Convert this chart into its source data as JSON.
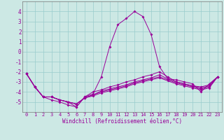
{
  "background_color": "#cce8e4",
  "grid_color": "#99cccc",
  "line_color": "#990099",
  "x_hours": [
    0,
    1,
    2,
    3,
    4,
    5,
    6,
    7,
    8,
    9,
    10,
    11,
    12,
    13,
    14,
    15,
    16,
    17,
    18,
    19,
    20,
    21,
    22,
    23
  ],
  "series1": [
    -2.2,
    -3.5,
    -4.5,
    -4.8,
    -5.0,
    -5.3,
    -5.5,
    -4.5,
    -4.2,
    -2.5,
    0.5,
    2.7,
    3.3,
    4.0,
    3.5,
    1.7,
    -1.5,
    -2.7,
    -2.8,
    -3.0,
    -3.2,
    -4.0,
    -3.2,
    -2.5
  ],
  "series2": [
    -2.2,
    -3.5,
    -4.5,
    -4.5,
    -4.8,
    -5.0,
    -5.5,
    -4.5,
    -4.0,
    -3.8,
    -3.5,
    -3.3,
    -3.0,
    -2.8,
    -2.5,
    -2.3,
    -2.0,
    -2.5,
    -3.0,
    -3.2,
    -3.4,
    -3.5,
    -3.3,
    -2.5
  ],
  "series3": [
    -2.2,
    -3.5,
    -4.5,
    -4.5,
    -4.8,
    -5.0,
    -5.2,
    -4.6,
    -4.3,
    -3.9,
    -3.7,
    -3.5,
    -3.3,
    -3.0,
    -2.8,
    -2.6,
    -2.3,
    -2.7,
    -3.0,
    -3.2,
    -3.4,
    -3.6,
    -3.4,
    -2.5
  ],
  "series4": [
    -2.2,
    -3.5,
    -4.5,
    -4.5,
    -4.8,
    -5.0,
    -5.2,
    -4.6,
    -4.3,
    -4.0,
    -3.8,
    -3.6,
    -3.4,
    -3.1,
    -2.9,
    -2.7,
    -2.5,
    -2.8,
    -3.1,
    -3.3,
    -3.5,
    -3.7,
    -3.5,
    -2.5
  ],
  "series5": [
    -2.2,
    -3.5,
    -4.5,
    -4.5,
    -4.8,
    -5.0,
    -5.2,
    -4.6,
    -4.4,
    -4.1,
    -3.9,
    -3.7,
    -3.5,
    -3.2,
    -3.0,
    -2.8,
    -2.6,
    -2.9,
    -3.2,
    -3.4,
    -3.6,
    -3.8,
    -3.6,
    -2.5
  ],
  "xlabel": "Windchill (Refroidissement éolien,°C)",
  "ylim": [
    -6,
    5
  ],
  "xlim": [
    -0.5,
    23.5
  ],
  "yticks": [
    -5,
    -4,
    -3,
    -2,
    -1,
    0,
    1,
    2,
    3,
    4
  ],
  "xticks": [
    0,
    1,
    2,
    3,
    4,
    5,
    6,
    7,
    8,
    9,
    10,
    11,
    12,
    13,
    14,
    15,
    16,
    17,
    18,
    19,
    20,
    21,
    22,
    23
  ],
  "xlabel_fontsize": 5.5,
  "ytick_fontsize": 5.5,
  "xtick_fontsize": 5.0,
  "linewidth": 0.7,
  "markersize": 2.0
}
